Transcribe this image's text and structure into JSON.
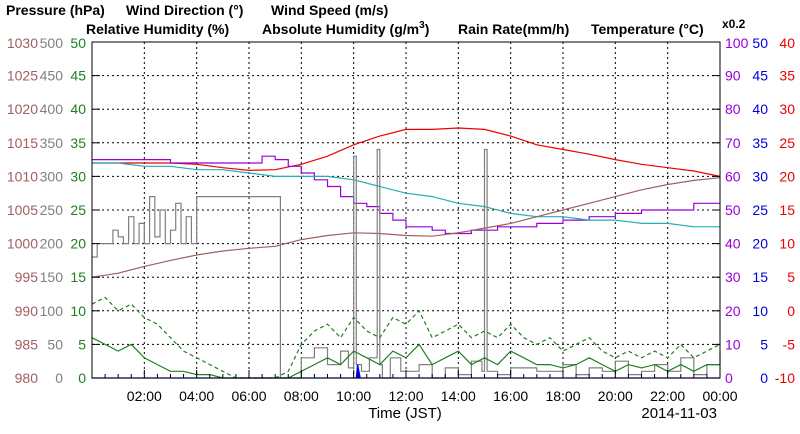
{
  "chart_data": {
    "type": "line",
    "titles": [
      {
        "id": "pressure",
        "text": "Pressure (hPa)",
        "color": "#a06060"
      },
      {
        "id": "wind_direction",
        "text": "Wind Direction (°)",
        "color": "#808080"
      },
      {
        "id": "wind_speed",
        "text": "Wind Speed (m/s)",
        "color": "#208020"
      },
      {
        "id": "rh",
        "text": "Relative Humidity (%)",
        "color": "#9900dd"
      },
      {
        "id": "ah_a",
        "text": "Absolute Humidity (g/m",
        "color": "#20b0b0"
      },
      {
        "id": "ah_sup",
        "text": "3",
        "color": "#20b0b0"
      },
      {
        "id": "ah_b",
        "text": ")",
        "color": "#20b0b0"
      },
      {
        "id": "rain",
        "text": "Rain Rate(mm/h)",
        "color": "#0000dd"
      },
      {
        "id": "temp",
        "text": "Temperature  (°C)",
        "color": "#ee0000"
      },
      {
        "id": "scale",
        "text": "x0.2",
        "color": "#20b0b0"
      }
    ],
    "xlabel": "Time (JST)",
    "date": "2014-11-03",
    "x_unit": "hours",
    "xlim": [
      0,
      24
    ],
    "x_ticks": [
      {
        "v": 2,
        "label": "02:00"
      },
      {
        "v": 4,
        "label": "04:00"
      },
      {
        "v": 6,
        "label": "06:00"
      },
      {
        "v": 8,
        "label": "08:00"
      },
      {
        "v": 10,
        "label": "10:00"
      },
      {
        "v": 12,
        "label": "12:00"
      },
      {
        "v": 14,
        "label": "14:00"
      },
      {
        "v": 16,
        "label": "16:00"
      },
      {
        "v": 18,
        "label": "18:00"
      },
      {
        "v": 20,
        "label": "20:00"
      },
      {
        "v": 22,
        "label": "22:00"
      },
      {
        "v": 24,
        "label": "00:00"
      }
    ],
    "grid": true,
    "axes": [
      {
        "id": "pressure",
        "side": "left",
        "color": "#a06060",
        "range": [
          980,
          1030
        ],
        "ticks": [
          "980",
          "985",
          "990",
          "995",
          "1000",
          "1005",
          "1010",
          "1015",
          "1020",
          "1025",
          "1030"
        ]
      },
      {
        "id": "wind_direction",
        "side": "left",
        "color": "#808080",
        "range": [
          0,
          500
        ],
        "ticks": [
          "0",
          "50",
          "100",
          "150",
          "200",
          "250",
          "300",
          "350",
          "400",
          "450",
          "500"
        ]
      },
      {
        "id": "wind_speed",
        "side": "left",
        "color": "#208020",
        "range": [
          0,
          50
        ],
        "ticks": [
          "0",
          "5",
          "10",
          "15",
          "20",
          "25",
          "30",
          "35",
          "40",
          "45",
          "50"
        ]
      },
      {
        "id": "rh",
        "side": "right",
        "color": "#9900dd",
        "range": [
          0,
          100
        ],
        "ticks": [
          "0",
          "10",
          "20",
          "30",
          "40",
          "50",
          "60",
          "70",
          "80",
          "90",
          "100"
        ]
      },
      {
        "id": "rain",
        "side": "right",
        "color": "#0000dd",
        "range": [
          0,
          50
        ],
        "ticks": [
          "0",
          "5",
          "10",
          "15",
          "20",
          "25",
          "30",
          "35",
          "40",
          "45",
          "50"
        ]
      },
      {
        "id": "temp",
        "side": "right",
        "color": "#ee0000",
        "range": [
          -10,
          40
        ],
        "ticks": [
          "-10",
          "-5",
          "0",
          "5",
          "10",
          "15",
          "20",
          "25",
          "30",
          "35",
          "40"
        ]
      }
    ],
    "series": [
      {
        "id": "temperature",
        "axis": "temp",
        "color": "#ee0000",
        "x": [
          0,
          1,
          2,
          3,
          4,
          5,
          6,
          7,
          8,
          9,
          10,
          11,
          12,
          13,
          14,
          15,
          16,
          17,
          18,
          19,
          20,
          21,
          22,
          23,
          24
        ],
        "y": [
          22,
          22,
          22,
          22,
          21.8,
          21.3,
          20.9,
          21,
          21.8,
          23,
          24.7,
          26,
          27,
          27,
          27.2,
          27,
          26,
          24.7,
          24,
          23.3,
          22.5,
          21.8,
          21.3,
          20.8,
          20
        ]
      },
      {
        "id": "relative_humidity",
        "axis": "rh",
        "color": "#9900dd",
        "step": true,
        "x": [
          0,
          1,
          2,
          3,
          4,
          5,
          6,
          6.5,
          7,
          7.5,
          8,
          8.5,
          9,
          9.5,
          10,
          10.5,
          11,
          11.5,
          12,
          12.5,
          13,
          13.5,
          14,
          14.5,
          15,
          15.5,
          16,
          17,
          18,
          19,
          20,
          21,
          22,
          23,
          24
        ],
        "y": [
          65,
          65,
          65,
          64,
          64,
          64,
          64,
          66,
          65,
          63,
          61,
          59,
          57,
          54,
          52,
          51,
          49,
          47,
          45,
          45,
          44,
          43,
          43,
          44,
          44,
          45,
          45,
          46,
          47,
          48,
          49,
          50,
          50,
          52,
          52
        ]
      },
      {
        "id": "absolute_humidity",
        "axis": "rh",
        "color": "#20b0b0",
        "x": [
          0,
          1,
          2,
          3,
          4,
          5,
          6,
          7,
          8,
          9,
          10,
          11,
          12,
          13,
          14,
          15,
          16,
          17,
          18,
          19,
          20,
          21,
          22,
          23,
          24
        ],
        "y": [
          64,
          64,
          63,
          63,
          62,
          62,
          61,
          60,
          60,
          60,
          59,
          57,
          55,
          54,
          52,
          51,
          49,
          48,
          48,
          47,
          47,
          46,
          46,
          45,
          45
        ]
      },
      {
        "id": "pressure",
        "axis": "pressure",
        "color": "#a06060",
        "x": [
          0,
          1,
          2,
          3,
          4,
          5,
          6,
          7,
          8,
          9,
          10,
          11,
          12,
          13,
          14,
          15,
          16,
          17,
          18,
          19,
          20,
          21,
          22,
          23,
          24
        ],
        "y": [
          995,
          995.6,
          996.6,
          997.5,
          998.3,
          998.9,
          999.3,
          999.6,
          1000.6,
          1001.2,
          1001.6,
          1001.5,
          1001.2,
          1001.1,
          1001.6,
          1002.3,
          1003,
          1004,
          1005,
          1006,
          1007,
          1008,
          1008.8,
          1009.4,
          1009.8
        ]
      },
      {
        "id": "wind_direction",
        "axis": "wind_direction",
        "color": "#808080",
        "step": true,
        "x": [
          0,
          0.2,
          0.5,
          0.8,
          1,
          1.2,
          1.4,
          1.6,
          1.8,
          2,
          2.2,
          2.4,
          2.6,
          2.8,
          3,
          3.2,
          3.4,
          3.6,
          3.8,
          4,
          5,
          6,
          7,
          7.2,
          7.5,
          8,
          8.5,
          9,
          9.5,
          9.8,
          10,
          10.1,
          10.3,
          10.6,
          10.9,
          11,
          11.1,
          11.4,
          11.8,
          12.5,
          13,
          13.5,
          14,
          14.5,
          14.9,
          15,
          15.1,
          15.5,
          16,
          17,
          18,
          18.5,
          19,
          19.5,
          20,
          20.5,
          21,
          21.5,
          22,
          22.5,
          23,
          23.5,
          24
        ],
        "y": [
          180,
          200,
          200,
          220,
          210,
          200,
          240,
          200,
          230,
          200,
          270,
          210,
          250,
          200,
          220,
          260,
          200,
          240,
          200,
          270,
          270,
          270,
          270,
          0,
          0,
          30,
          45,
          20,
          40,
          15,
          330,
          20,
          10,
          30,
          340,
          20,
          0,
          30,
          10,
          20,
          0,
          15,
          5,
          25,
          10,
          340,
          10,
          5,
          15,
          10,
          20,
          5,
          15,
          10,
          25,
          5,
          10,
          20,
          10,
          30,
          5,
          20,
          40
        ]
      },
      {
        "id": "wind_speed",
        "axis": "wind_speed",
        "color": "#208020",
        "x": [
          0,
          0.5,
          1,
          1.5,
          2,
          2.5,
          3,
          3.5,
          4,
          4.5,
          5,
          5.5,
          6,
          6.5,
          7,
          7.5,
          8,
          8.5,
          9,
          9.5,
          10,
          10.5,
          11,
          11.5,
          12,
          12.5,
          13,
          13.5,
          14,
          14.5,
          15,
          15.5,
          16,
          16.5,
          17,
          17.5,
          18,
          18.5,
          19,
          19.5,
          20,
          20.5,
          21,
          21.5,
          22,
          22.5,
          23,
          23.5,
          24
        ],
        "y": [
          6,
          5,
          4,
          5,
          3,
          2,
          1,
          1,
          0.5,
          0.5,
          0,
          0,
          0,
          0,
          0,
          0,
          1,
          2,
          3,
          2,
          4,
          3,
          2,
          4,
          3,
          5,
          2,
          3,
          4,
          2,
          3,
          2,
          4,
          3,
          2,
          2,
          1.5,
          2,
          3,
          2,
          1,
          2,
          1.5,
          2,
          1,
          2,
          1,
          2,
          2
        ]
      },
      {
        "id": "wind_gust",
        "axis": "wind_speed",
        "color": "#208020",
        "dashed": true,
        "x": [
          0,
          0.5,
          1,
          1.5,
          2,
          2.5,
          3,
          3.5,
          4,
          4.5,
          5,
          5.5,
          6,
          6.5,
          7,
          7.5,
          8,
          8.5,
          9,
          9.5,
          10,
          10.5,
          11,
          11.5,
          12,
          12.5,
          13,
          13.5,
          14,
          14.5,
          15,
          15.5,
          16,
          16.5,
          17,
          17.5,
          18,
          18.5,
          19,
          19.5,
          20,
          20.5,
          21,
          21.5,
          22,
          22.5,
          23,
          23.5,
          24
        ],
        "y": [
          11,
          12,
          10,
          11,
          9,
          8,
          6,
          4,
          3,
          2,
          1,
          0,
          0,
          0,
          0,
          1,
          5,
          7,
          8,
          6,
          9,
          7,
          6,
          9,
          8,
          10,
          6,
          7,
          8,
          6,
          7,
          6,
          8,
          6,
          5,
          6,
          4,
          5,
          6,
          4,
          3,
          4,
          3,
          4,
          3,
          5,
          3,
          4,
          5
        ]
      },
      {
        "id": "rain_rate",
        "axis": "rain",
        "color": "#0000dd",
        "fill": true,
        "x": [
          0,
          10.1,
          10.15,
          10.2,
          10.25,
          24
        ],
        "y": [
          0,
          0,
          2,
          1,
          0,
          0
        ]
      }
    ]
  }
}
